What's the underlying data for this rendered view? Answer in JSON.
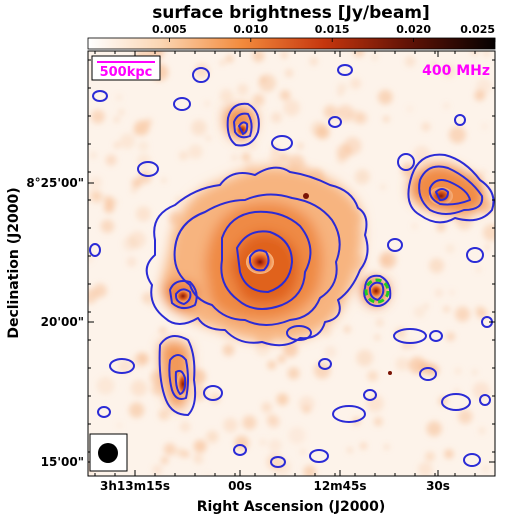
{
  "chart_data": {
    "type": "heatmap",
    "title": "surface brightness [Jy/beam]",
    "colorbar": {
      "range": [
        0,
        0.025
      ],
      "ticks": [
        "0.005",
        "0.010",
        "0.015",
        "0.020",
        "0.025"
      ],
      "colormap": "white-orange-red-black",
      "position": "top"
    },
    "xlabel": "Right Ascension (J2000)",
    "ylabel": "Declination (J2000)",
    "xticks": [
      "3h13m15s",
      "00s",
      "12m45s",
      "30s"
    ],
    "yticks": [
      "15'00\"",
      "20'00\"",
      "8°25'00\""
    ],
    "frequency_label": "400 MHz",
    "scalebar_label": "500kpc",
    "contour_color": "#2b2bd6",
    "scalebar_color": "#ff00ff",
    "marker_color": "#22cc22",
    "beam": "filled black ellipse, lower-left"
  }
}
